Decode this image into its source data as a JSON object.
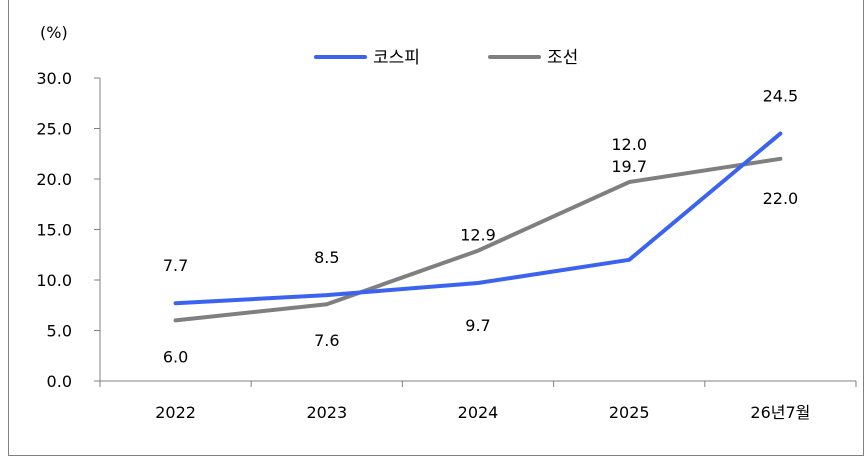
{
  "chart_data": {
    "type": "line",
    "unit_label": "(%)",
    "categories": [
      "2022",
      "2023",
      "2024",
      "2025",
      "26년7월"
    ],
    "ylim": [
      0,
      30
    ],
    "yticks": [
      "0.0",
      "5.0",
      "10.0",
      "15.0",
      "20.0",
      "25.0",
      "30.0"
    ],
    "grid": false,
    "legend_position": "top-center",
    "series": [
      {
        "name": "코스피",
        "color": "#3b63f0",
        "values": [
          7.7,
          8.5,
          9.7,
          12.0,
          24.5
        ],
        "labels": [
          "7.7",
          "8.5",
          "9.7",
          "12.0",
          "24.5"
        ]
      },
      {
        "name": "조선",
        "color": "#7f7f7f",
        "values": [
          6.0,
          7.6,
          12.9,
          19.7,
          22.0
        ],
        "labels": [
          "6.0",
          "7.6",
          "12.9",
          "19.7",
          "22.0"
        ]
      }
    ]
  }
}
